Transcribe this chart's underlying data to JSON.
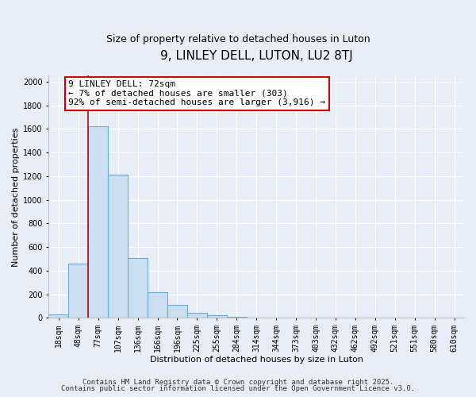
{
  "title": "9, LINLEY DELL, LUTON, LU2 8TJ",
  "subtitle": "Size of property relative to detached houses in Luton",
  "xlabel": "Distribution of detached houses by size in Luton",
  "ylabel": "Number of detached properties",
  "bar_fill_color": "#ccdff0",
  "bar_edge_color": "#6aadd5",
  "background_color": "#e8eef8",
  "grid_color": "#ffffff",
  "categories": [
    "18sqm",
    "48sqm",
    "77sqm",
    "107sqm",
    "136sqm",
    "166sqm",
    "196sqm",
    "225sqm",
    "255sqm",
    "284sqm",
    "314sqm",
    "344sqm",
    "373sqm",
    "403sqm",
    "432sqm",
    "462sqm",
    "492sqm",
    "521sqm",
    "551sqm",
    "580sqm",
    "610sqm"
  ],
  "bar_values": [
    30,
    460,
    1620,
    1210,
    510,
    215,
    110,
    45,
    20,
    10,
    0,
    0,
    0,
    0,
    0,
    0,
    0,
    0,
    0,
    0,
    0
  ],
  "ylim": [
    0,
    2050
  ],
  "yticks": [
    0,
    200,
    400,
    600,
    800,
    1000,
    1200,
    1400,
    1600,
    1800,
    2000
  ],
  "red_line_index": 2,
  "annotation_line1": "9 LINLEY DELL: 72sqm",
  "annotation_line2": "← 7% of detached houses are smaller (303)",
  "annotation_line3": "92% of semi-detached houses are larger (3,916) →",
  "annotation_box_color": "#ffffff",
  "annotation_border_color": "#cc0000",
  "footer_line1": "Contains HM Land Registry data © Crown copyright and database right 2025.",
  "footer_line2": "Contains public sector information licensed under the Open Government Licence v3.0.",
  "title_fontsize": 11,
  "subtitle_fontsize": 9,
  "axis_label_fontsize": 8,
  "tick_fontsize": 7,
  "annotation_fontsize": 8,
  "footer_fontsize": 6.5
}
